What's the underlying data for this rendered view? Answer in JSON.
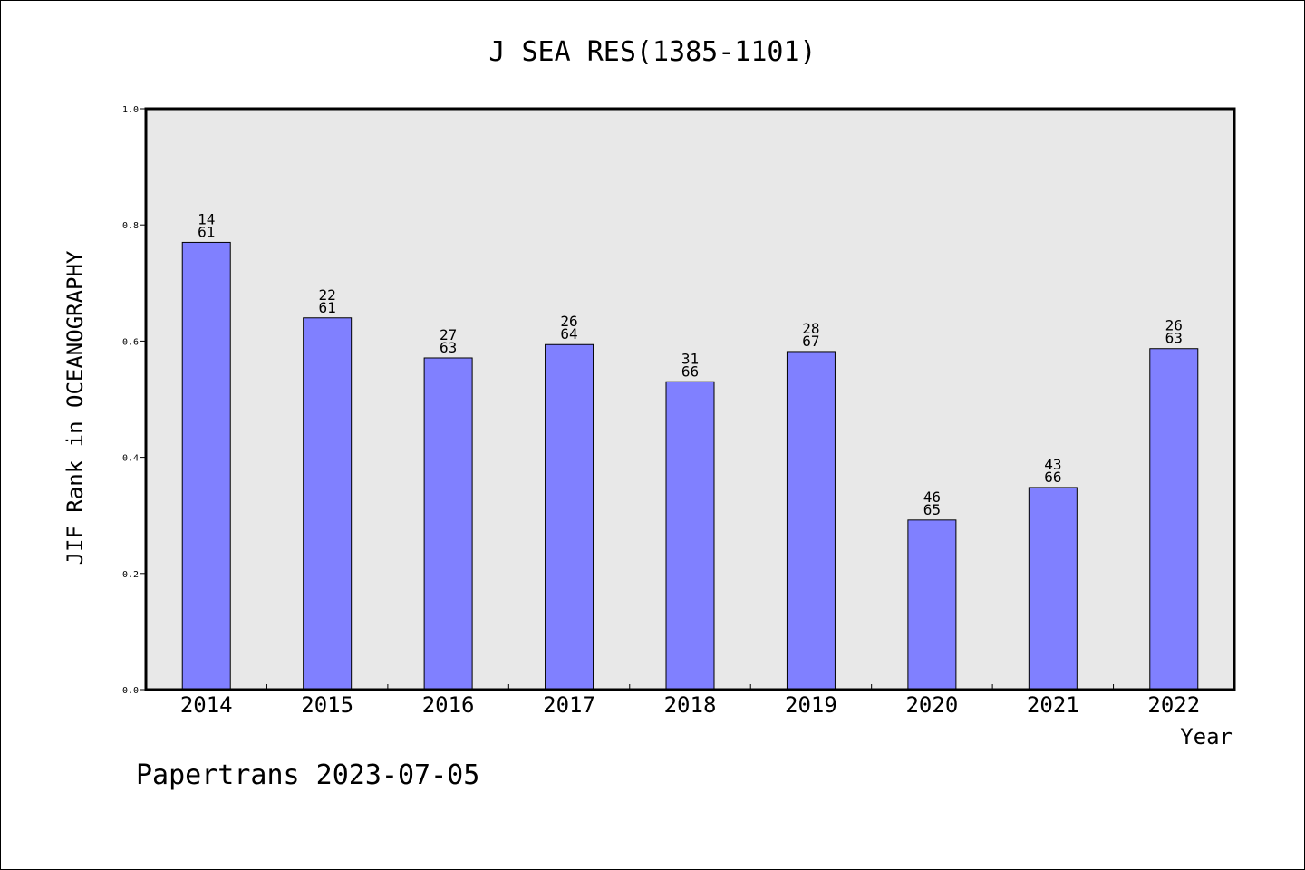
{
  "chart_data": {
    "type": "bar",
    "title": "J SEA RES(1385-1101)",
    "xlabel": "Year",
    "ylabel": "JIF Rank in OCEANOGRAPHY",
    "categories": [
      "2014",
      "2015",
      "2016",
      "2017",
      "2018",
      "2019",
      "2020",
      "2021",
      "2022"
    ],
    "values": [
      0.77,
      0.64,
      0.571,
      0.594,
      0.53,
      0.582,
      0.292,
      0.348,
      0.587
    ],
    "bar_labels": [
      [
        "14",
        "61"
      ],
      [
        "22",
        "61"
      ],
      [
        "27",
        "63"
      ],
      [
        "26",
        "64"
      ],
      [
        "31",
        "66"
      ],
      [
        "28",
        "67"
      ],
      [
        "46",
        "65"
      ],
      [
        "43",
        "66"
      ],
      [
        "26",
        "63"
      ]
    ],
    "ylim": [
      0,
      1.0
    ],
    "yticks": [
      "0.0",
      "0.2",
      "0.4",
      "0.6",
      "0.8",
      "1.0"
    ],
    "grid": false,
    "colors": {
      "bar_fill": "#8080ff",
      "bar_stroke": "#000000",
      "plot_background": "#e8e8e8",
      "axes": "#000000"
    }
  },
  "footer": {
    "text": "Papertrans 2023-07-05"
  }
}
